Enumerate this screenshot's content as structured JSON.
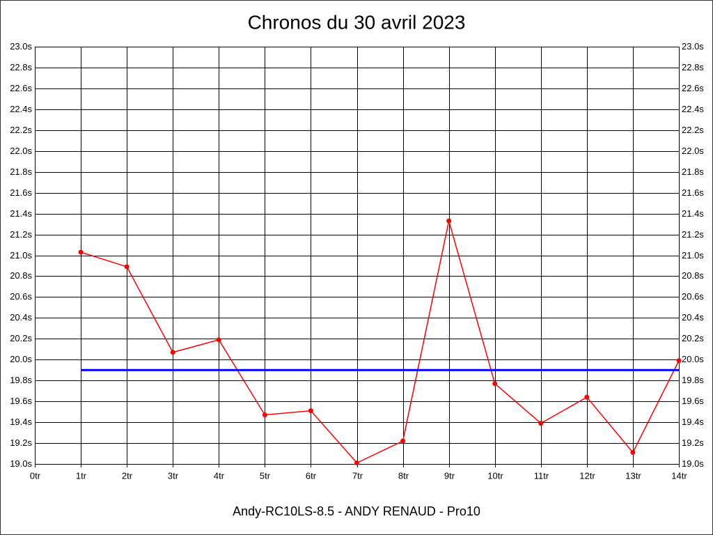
{
  "chart_data": {
    "type": "line",
    "title": "Chronos du 30 avril 2023",
    "xlabel": "Andy-RC10LS-8.5 - ANDY RENAUD - Pro10",
    "xlim": [
      0,
      14
    ],
    "xticks": [
      {
        "value": 0,
        "label": "0tr"
      },
      {
        "value": 1,
        "label": "1tr"
      },
      {
        "value": 2,
        "label": "2tr"
      },
      {
        "value": 3,
        "label": "3tr"
      },
      {
        "value": 4,
        "label": "4tr"
      },
      {
        "value": 5,
        "label": "5tr"
      },
      {
        "value": 6,
        "label": "6tr"
      },
      {
        "value": 7,
        "label": "7tr"
      },
      {
        "value": 8,
        "label": "8tr"
      },
      {
        "value": 9,
        "label": "9tr"
      },
      {
        "value": 10,
        "label": "10tr"
      },
      {
        "value": 11,
        "label": "11tr"
      },
      {
        "value": 12,
        "label": "12tr"
      },
      {
        "value": 13,
        "label": "13tr"
      },
      {
        "value": 14,
        "label": "14tr"
      }
    ],
    "ylim": [
      19.0,
      23.0
    ],
    "yticks": [
      {
        "value": 19.0,
        "label": "19.0s"
      },
      {
        "value": 19.2,
        "label": "19.2s"
      },
      {
        "value": 19.4,
        "label": "19.4s"
      },
      {
        "value": 19.6,
        "label": "19.6s"
      },
      {
        "value": 19.8,
        "label": "19.8s"
      },
      {
        "value": 20.0,
        "label": "20.0s"
      },
      {
        "value": 20.2,
        "label": "20.2s"
      },
      {
        "value": 20.4,
        "label": "20.4s"
      },
      {
        "value": 20.6,
        "label": "20.6s"
      },
      {
        "value": 20.8,
        "label": "20.8s"
      },
      {
        "value": 21.0,
        "label": "21.0s"
      },
      {
        "value": 21.2,
        "label": "21.2s"
      },
      {
        "value": 21.4,
        "label": "21.4s"
      },
      {
        "value": 21.6,
        "label": "21.6s"
      },
      {
        "value": 21.8,
        "label": "21.8s"
      },
      {
        "value": 22.0,
        "label": "22.0s"
      },
      {
        "value": 22.2,
        "label": "22.2s"
      },
      {
        "value": 22.4,
        "label": "22.4s"
      },
      {
        "value": 22.6,
        "label": "22.6s"
      },
      {
        "value": 22.8,
        "label": "22.8s"
      },
      {
        "value": 23.0,
        "label": "23.0s"
      }
    ],
    "grid": true,
    "series": [
      {
        "color": "#ff0000",
        "markers": true,
        "x": [
          1,
          2,
          3,
          4,
          5,
          6,
          7,
          8,
          9,
          10,
          11,
          12,
          13,
          14
        ],
        "values": [
          21.03,
          20.89,
          20.07,
          20.19,
          19.47,
          19.51,
          19.01,
          19.22,
          21.33,
          19.77,
          19.39,
          19.64,
          19.11,
          19.99
        ]
      },
      {
        "color": "#0000ff",
        "markers": false,
        "x": [
          1,
          14
        ],
        "values": [
          19.9,
          19.9
        ]
      }
    ]
  }
}
